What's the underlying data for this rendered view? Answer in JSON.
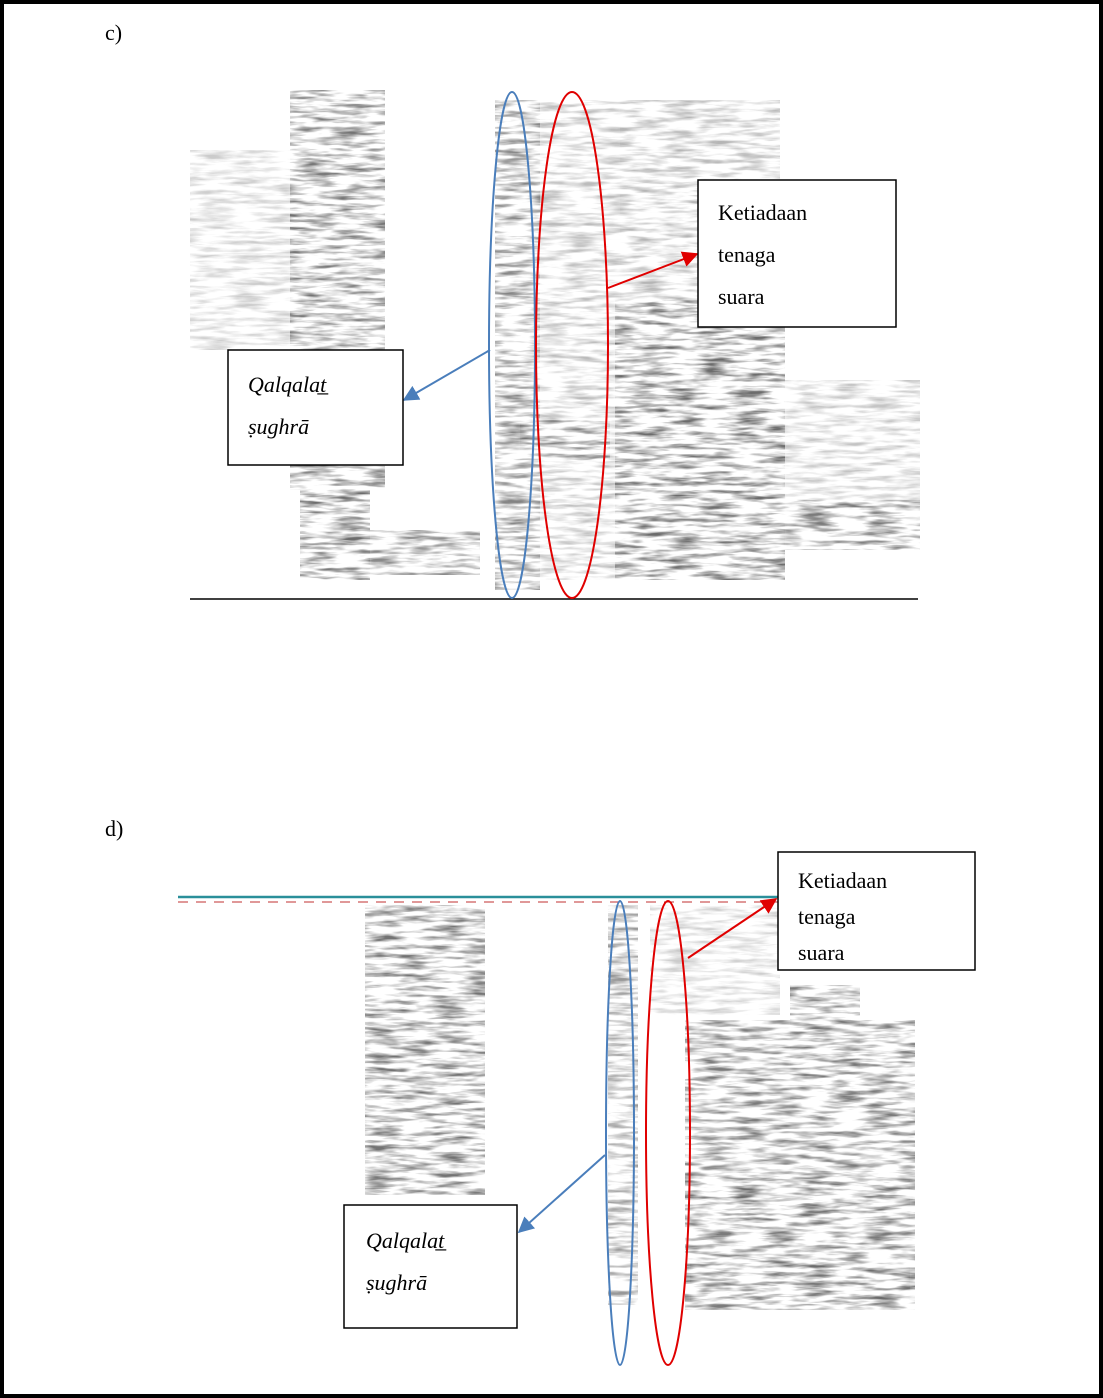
{
  "panels": [
    {
      "label": "c)",
      "red_note": [
        "Ketiadaan",
        "tenaga",
        "suara"
      ],
      "blue_note": [
        "Qalqalat̲",
        "ṣughrā"
      ]
    },
    {
      "label": "d)",
      "red_note": [
        "Ketiadaan",
        "tenaga",
        "suara"
      ],
      "blue_note": [
        "Qalqalat̲",
        "ṣughrā"
      ]
    }
  ]
}
